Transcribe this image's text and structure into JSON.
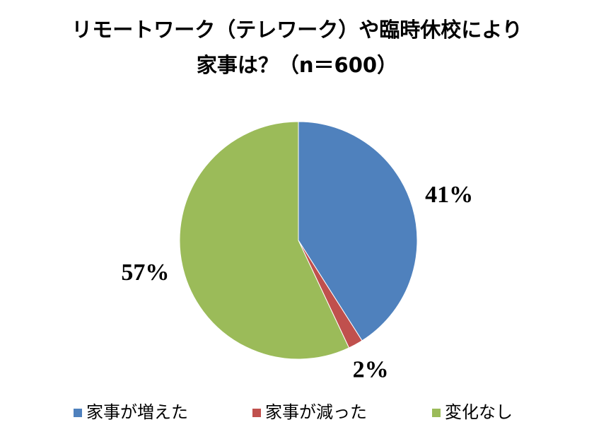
{
  "chart_data": {
    "type": "pie",
    "title": [
      "リモートワーク（テレワーク）や臨時休校により",
      "家事は？（n＝600）"
    ],
    "categories": [
      "家事が増えた",
      "家事が減った",
      "変化なし"
    ],
    "values": [
      41,
      2,
      57
    ],
    "value_labels": [
      "41%",
      "2%",
      "57%"
    ],
    "colors": [
      "#4f81bd",
      "#c0504d",
      "#9bbb59"
    ],
    "legend": "bottom"
  }
}
